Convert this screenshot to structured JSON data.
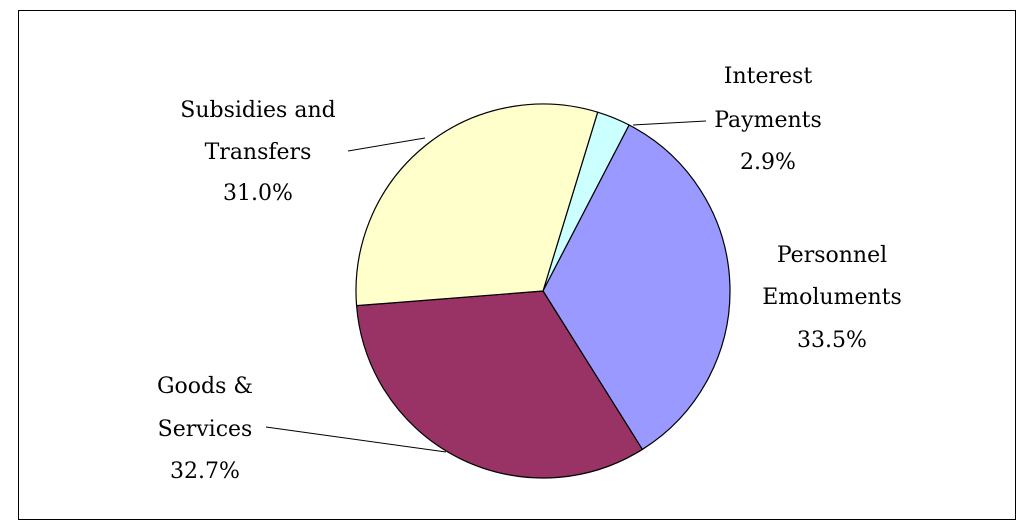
{
  "chart_data": {
    "type": "pie",
    "title": "",
    "slices": [
      {
        "key": "interest",
        "label_lines": [
          "Interest",
          "Payments"
        ],
        "percent_text": "2.9%",
        "value": 2.9,
        "color": "#ccffff"
      },
      {
        "key": "personnel",
        "label_lines": [
          "Personnel",
          "Emoluments"
        ],
        "percent_text": "33.5%",
        "value": 33.5,
        "color": "#9999ff"
      },
      {
        "key": "goods",
        "label_lines": [
          "Goods &",
          "Services"
        ],
        "percent_text": "32.7%",
        "value": 32.7,
        "color": "#993366"
      },
      {
        "key": "subsidies",
        "label_lines": [
          "Subsidies and",
          "Transfers"
        ],
        "percent_text": "31.0%",
        "value": 31.0,
        "color": "#ffffcc"
      }
    ],
    "start_angle_deg": 17,
    "direction": "clockwise",
    "legend": "none"
  }
}
